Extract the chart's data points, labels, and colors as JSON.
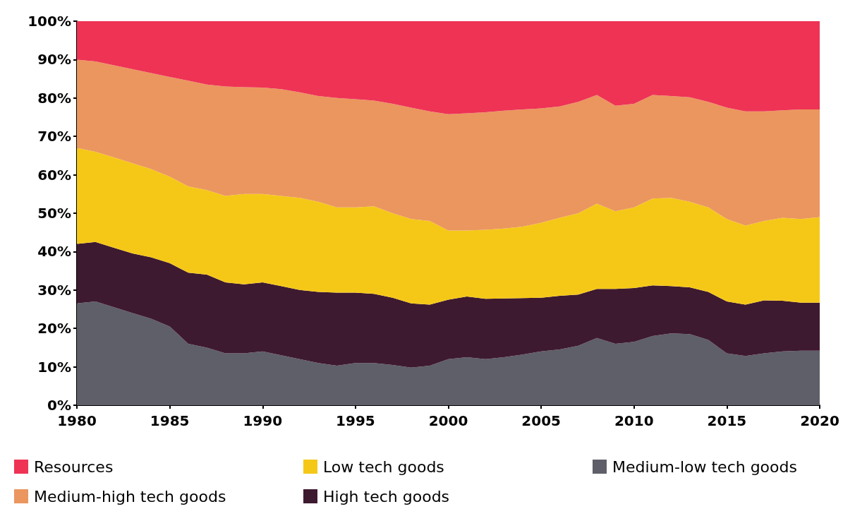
{
  "chart_data": {
    "type": "area",
    "stacked": true,
    "x": [
      1980,
      1981,
      1982,
      1983,
      1984,
      1985,
      1986,
      1987,
      1988,
      1989,
      1990,
      1991,
      1992,
      1993,
      1994,
      1995,
      1996,
      1997,
      1998,
      1999,
      2000,
      2001,
      2002,
      2003,
      2004,
      2005,
      2006,
      2007,
      2008,
      2009,
      2010,
      2011,
      2012,
      2013,
      2014,
      2015,
      2016,
      2017,
      2018,
      2019,
      2020
    ],
    "xlim": [
      1980,
      2020
    ],
    "xticks": [
      1980,
      1985,
      1990,
      1995,
      2000,
      2005,
      2010,
      2015,
      2020
    ],
    "ylim": [
      0,
      100
    ],
    "yticks": [
      {
        "value": 0,
        "label": "0%"
      },
      {
        "value": 10,
        "label": "10%"
      },
      {
        "value": 20,
        "label": "20%"
      },
      {
        "value": 30,
        "label": "30%"
      },
      {
        "value": 40,
        "label": "40%"
      },
      {
        "value": 50,
        "label": "50%"
      },
      {
        "value": 60,
        "label": "60%"
      },
      {
        "value": 70,
        "label": "70%"
      },
      {
        "value": 80,
        "label": "80%"
      },
      {
        "value": 90,
        "label": "90%"
      },
      {
        "value": 100,
        "label": "100%"
      }
    ],
    "grid": false,
    "legend": "bottom",
    "marker": "none",
    "series": [
      {
        "name": "Medium-low tech goods",
        "color": "#5e5f68",
        "values": [
          26.5,
          27,
          25.5,
          24,
          22.5,
          20.5,
          16,
          15,
          13.5,
          13.5,
          14,
          13,
          12,
          11,
          10.3,
          11,
          11,
          10.5,
          9.8,
          10.3,
          12,
          12.5,
          12,
          12.5,
          13.2,
          14,
          14.5,
          15.5,
          17.5,
          16,
          16.5,
          18,
          18.7,
          18.5,
          17,
          13.5,
          12.8,
          13.5,
          14,
          14.2,
          14.2
        ]
      },
      {
        "name": "High tech goods",
        "color": "#3e1a30",
        "values": [
          15.5,
          15.5,
          15.5,
          15.5,
          16,
          16.5,
          18.5,
          19,
          18.5,
          18,
          18,
          18,
          18,
          18.5,
          19,
          18.3,
          18,
          17.5,
          16.7,
          15.9,
          15.5,
          15.8,
          15.7,
          15.3,
          14.7,
          14,
          14,
          13.3,
          12.8,
          14.3,
          14,
          13.2,
          12.3,
          12.2,
          12.5,
          13.5,
          13.4,
          13.8,
          13.2,
          12.5,
          12.5
        ]
      },
      {
        "name": "Low tech goods",
        "color": "#f5c818",
        "values": [
          25,
          23.5,
          23.5,
          23.5,
          23,
          22.5,
          22.5,
          22,
          22.5,
          23.5,
          23,
          23.5,
          24,
          23.5,
          22.2,
          22.2,
          22.8,
          22,
          22,
          21.8,
          18,
          17.2,
          18,
          18.2,
          18.6,
          19.5,
          20.3,
          21.2,
          22.2,
          20.2,
          21,
          22.6,
          23,
          22.3,
          22,
          21.5,
          20.6,
          20.7,
          21.6,
          21.8,
          22.3
        ]
      },
      {
        "name": "Medium-high tech goods",
        "color": "#eb965e",
        "values": [
          23,
          23.5,
          24,
          24.5,
          25,
          26,
          27.5,
          27.5,
          28.5,
          27.8,
          27.7,
          27.8,
          27.5,
          27.5,
          28.5,
          28.2,
          27.5,
          28.5,
          29,
          28.5,
          30.3,
          30.5,
          30.6,
          30.7,
          30.5,
          29.8,
          29,
          29,
          28.3,
          27.5,
          27,
          27,
          26.5,
          27.2,
          27.5,
          29,
          29.7,
          28.5,
          28,
          28.5,
          28
        ]
      },
      {
        "name": "Resources",
        "color": "#ee3355",
        "values": [
          10,
          10.5,
          11.5,
          12.5,
          13.5,
          14.5,
          15.5,
          16.5,
          17,
          17.2,
          17.3,
          17.7,
          18.5,
          19.5,
          20,
          20.3,
          20.7,
          21.5,
          22.5,
          23.5,
          24.2,
          24,
          23.7,
          23.3,
          23,
          22.7,
          22.2,
          21,
          19.2,
          22,
          21.5,
          19.2,
          19.5,
          19.8,
          21,
          22.5,
          23.5,
          23.5,
          23.2,
          23,
          23
        ]
      }
    ]
  }
}
